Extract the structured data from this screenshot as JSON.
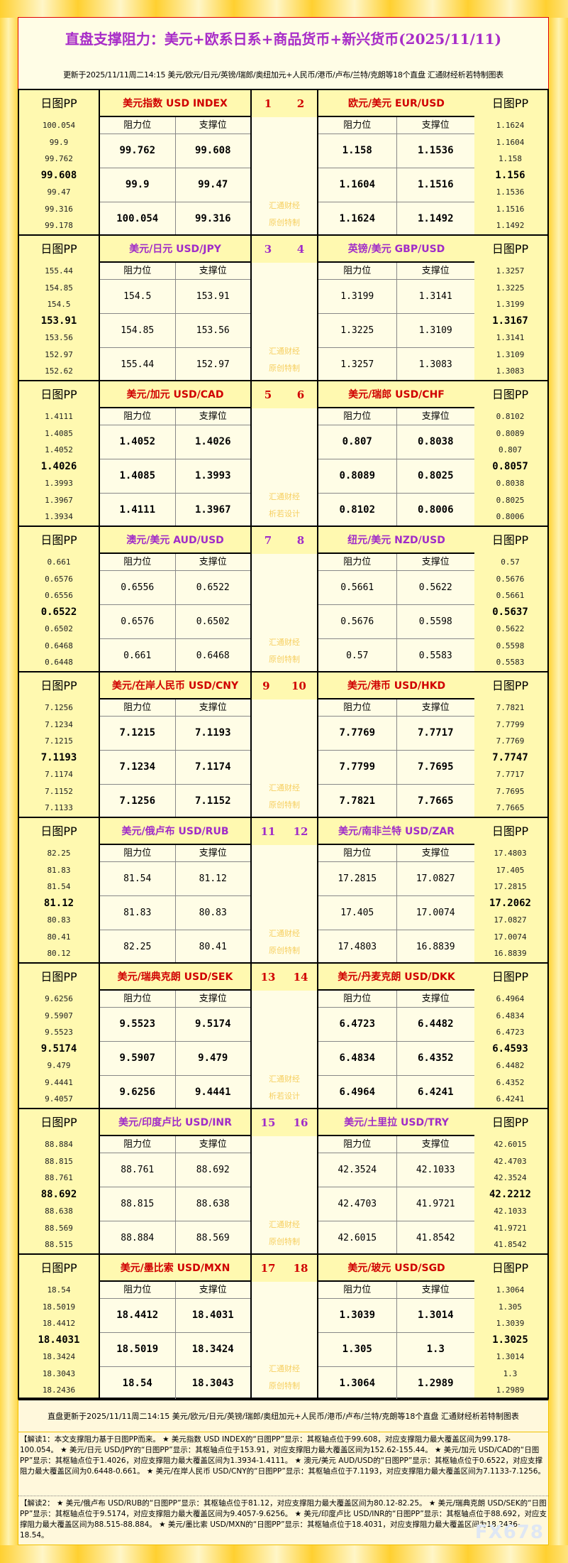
{
  "title": "直盘支撑阻力：美元+欧系日系+商品货币+新兴货币(2025/11/11)",
  "subtitle": "更新于2025/11/11周二14:15 美元/欧元/日元/英镑/瑞郎/奥纽加元+人民币/港币/卢布/兰特/克朗等18个直盘 汇通财经析若特制图表",
  "labels": {
    "pp": "日图PP",
    "resistance": "阻力位",
    "support": "支撑位"
  },
  "colors": {
    "odd_header": "#d00000",
    "even_header": "#a02cc8"
  },
  "blocks": [
    {
      "left": {
        "name": "美元指数 USD INDEX",
        "pp": [
          "100.054",
          "99.9",
          "99.762",
          "99.608",
          "99.47",
          "99.316",
          "99.178"
        ],
        "rows": [
          [
            "99.762",
            "99.608"
          ],
          [
            "99.9",
            "99.47"
          ],
          [
            "100.054",
            "99.316"
          ]
        ]
      },
      "nums": [
        "1",
        "2"
      ],
      "watermark": [
        "汇通财经",
        "原创特制"
      ],
      "right": {
        "name": "欧元/美元 EUR/USD",
        "pp": [
          "1.1624",
          "1.1604",
          "1.158",
          "1.156",
          "1.1536",
          "1.1516",
          "1.1492"
        ],
        "rows": [
          [
            "1.158",
            "1.1536"
          ],
          [
            "1.1604",
            "1.1516"
          ],
          [
            "1.1624",
            "1.1492"
          ]
        ]
      }
    },
    {
      "left": {
        "name": "美元/日元 USD/JPY",
        "pp": [
          "155.44",
          "154.85",
          "154.5",
          "153.91",
          "153.56",
          "152.97",
          "152.62"
        ],
        "rows": [
          [
            "154.5",
            "153.91"
          ],
          [
            "154.85",
            "153.56"
          ],
          [
            "155.44",
            "152.97"
          ]
        ]
      },
      "nums": [
        "3",
        "4"
      ],
      "watermark": [
        "汇通财经",
        "原创特制"
      ],
      "right": {
        "name": "英镑/美元 GBP/USD",
        "pp": [
          "1.3257",
          "1.3225",
          "1.3199",
          "1.3167",
          "1.3141",
          "1.3109",
          "1.3083"
        ],
        "rows": [
          [
            "1.3199",
            "1.3141"
          ],
          [
            "1.3225",
            "1.3109"
          ],
          [
            "1.3257",
            "1.3083"
          ]
        ]
      }
    },
    {
      "left": {
        "name": "美元/加元 USD/CAD",
        "pp": [
          "1.4111",
          "1.4085",
          "1.4052",
          "1.4026",
          "1.3993",
          "1.3967",
          "1.3934"
        ],
        "rows": [
          [
            "1.4052",
            "1.4026"
          ],
          [
            "1.4085",
            "1.3993"
          ],
          [
            "1.4111",
            "1.3967"
          ]
        ]
      },
      "nums": [
        "5",
        "6"
      ],
      "watermark": [
        "汇通财经",
        "析若设计"
      ],
      "right": {
        "name": "美元/瑞郎 USD/CHF",
        "pp": [
          "0.8102",
          "0.8089",
          "0.807",
          "0.8057",
          "0.8038",
          "0.8025",
          "0.8006"
        ],
        "rows": [
          [
            "0.807",
            "0.8038"
          ],
          [
            "0.8089",
            "0.8025"
          ],
          [
            "0.8102",
            "0.8006"
          ]
        ]
      }
    },
    {
      "left": {
        "name": "澳元/美元 AUD/USD",
        "pp": [
          "0.661",
          "0.6576",
          "0.6556",
          "0.6522",
          "0.6502",
          "0.6468",
          "0.6448"
        ],
        "rows": [
          [
            "0.6556",
            "0.6522"
          ],
          [
            "0.6576",
            "0.6502"
          ],
          [
            "0.661",
            "0.6468"
          ]
        ]
      },
      "nums": [
        "7",
        "8"
      ],
      "watermark": [
        "汇通财经",
        "原创特制"
      ],
      "right": {
        "name": "纽元/美元 NZD/USD",
        "pp": [
          "0.57",
          "0.5676",
          "0.5661",
          "0.5637",
          "0.5622",
          "0.5598",
          "0.5583"
        ],
        "rows": [
          [
            "0.5661",
            "0.5622"
          ],
          [
            "0.5676",
            "0.5598"
          ],
          [
            "0.57",
            "0.5583"
          ]
        ]
      }
    },
    {
      "left": {
        "name": "美元/在岸人民币 USD/CNY",
        "pp": [
          "7.1256",
          "7.1234",
          "7.1215",
          "7.1193",
          "7.1174",
          "7.1152",
          "7.1133"
        ],
        "rows": [
          [
            "7.1215",
            "7.1193"
          ],
          [
            "7.1234",
            "7.1174"
          ],
          [
            "7.1256",
            "7.1152"
          ]
        ]
      },
      "nums": [
        "9",
        "10"
      ],
      "watermark": [
        "汇通财经",
        "原创特制"
      ],
      "right": {
        "name": "美元/港币 USD/HKD",
        "pp": [
          "7.7821",
          "7.7799",
          "7.7769",
          "7.7747",
          "7.7717",
          "7.7695",
          "7.7665"
        ],
        "rows": [
          [
            "7.7769",
            "7.7717"
          ],
          [
            "7.7799",
            "7.7695"
          ],
          [
            "7.7821",
            "7.7665"
          ]
        ]
      }
    },
    {
      "left": {
        "name": "美元/俄卢布 USD/RUB",
        "pp": [
          "82.25",
          "81.83",
          "81.54",
          "81.12",
          "80.83",
          "80.41",
          "80.12"
        ],
        "rows": [
          [
            "81.54",
            "81.12"
          ],
          [
            "81.83",
            "80.83"
          ],
          [
            "82.25",
            "80.41"
          ]
        ]
      },
      "nums": [
        "11",
        "12"
      ],
      "watermark": [
        "汇通财经",
        "原创特制"
      ],
      "right": {
        "name": "美元/南非兰特 USD/ZAR",
        "pp": [
          "17.4803",
          "17.405",
          "17.2815",
          "17.2062",
          "17.0827",
          "17.0074",
          "16.8839"
        ],
        "rows": [
          [
            "17.2815",
            "17.0827"
          ],
          [
            "17.405",
            "17.0074"
          ],
          [
            "17.4803",
            "16.8839"
          ]
        ]
      }
    },
    {
      "left": {
        "name": "美元/瑞典克朗 USD/SEK",
        "pp": [
          "9.6256",
          "9.5907",
          "9.5523",
          "9.5174",
          "9.479",
          "9.4441",
          "9.4057"
        ],
        "rows": [
          [
            "9.5523",
            "9.5174"
          ],
          [
            "9.5907",
            "9.479"
          ],
          [
            "9.6256",
            "9.4441"
          ]
        ]
      },
      "nums": [
        "13",
        "14"
      ],
      "watermark": [
        "汇通财经",
        "析若设计"
      ],
      "right": {
        "name": "美元/丹麦克朗 USD/DKK",
        "pp": [
          "6.4964",
          "6.4834",
          "6.4723",
          "6.4593",
          "6.4482",
          "6.4352",
          "6.4241"
        ],
        "rows": [
          [
            "6.4723",
            "6.4482"
          ],
          [
            "6.4834",
            "6.4352"
          ],
          [
            "6.4964",
            "6.4241"
          ]
        ]
      }
    },
    {
      "left": {
        "name": "美元/印度卢比 USD/INR",
        "pp": [
          "88.884",
          "88.815",
          "88.761",
          "88.692",
          "88.638",
          "88.569",
          "88.515"
        ],
        "rows": [
          [
            "88.761",
            "88.692"
          ],
          [
            "88.815",
            "88.638"
          ],
          [
            "88.884",
            "88.569"
          ]
        ]
      },
      "nums": [
        "15",
        "16"
      ],
      "watermark": [
        "汇通财经",
        "原创特制"
      ],
      "right": {
        "name": "美元/土里拉 USD/TRY",
        "pp": [
          "42.6015",
          "42.4703",
          "42.3524",
          "42.2212",
          "42.1033",
          "41.9721",
          "41.8542"
        ],
        "rows": [
          [
            "42.3524",
            "42.1033"
          ],
          [
            "42.4703",
            "41.9721"
          ],
          [
            "42.6015",
            "41.8542"
          ]
        ]
      }
    },
    {
      "left": {
        "name": "美元/墨比索 USD/MXN",
        "pp": [
          "18.54",
          "18.5019",
          "18.4412",
          "18.4031",
          "18.3424",
          "18.3043",
          "18.2436"
        ],
        "rows": [
          [
            "18.4412",
            "18.4031"
          ],
          [
            "18.5019",
            "18.3424"
          ],
          [
            "18.54",
            "18.3043"
          ]
        ]
      },
      "nums": [
        "17",
        "18"
      ],
      "watermark": [
        "汇通财经",
        "原创特制"
      ],
      "right": {
        "name": "美元/玻元 USD/SGD",
        "pp": [
          "1.3064",
          "1.305",
          "1.3039",
          "1.3025",
          "1.3014",
          "1.3",
          "1.2989"
        ],
        "rows": [
          [
            "1.3039",
            "1.3014"
          ],
          [
            "1.305",
            "1.3"
          ],
          [
            "1.3064",
            "1.2989"
          ]
        ]
      }
    }
  ],
  "footer": {
    "update": "直盘更新于2025/11/11周二14:15 美元/欧元/日元/英镑/瑞郎/奥纽加元+人民币/港币/卢布/兰特/克朗等18个直盘 汇通财经析若特制图表",
    "note1": "【解读1：本文支撑阻力基于日图PP而来。 ★ 美元指数 USD INDEX的“日图PP”显示：其枢轴点位于99.608，对应支撑阻力最大覆盖区间为99.178-100.054。 ★ 美元/日元 USD/JPY的“日图PP”显示：其枢轴点位于153.91，对应支撑阻力最大覆盖区间为152.62-155.44。 ★ 美元/加元 USD/CAD的“日图PP”显示：其枢轴点位于1.4026，对应支撑阻力最大覆盖区间为1.3934-1.4111。 ★ 澳元/美元 AUD/USD的“日图PP”显示：其枢轴点位于0.6522，对应支撑阻力最大覆盖区间为0.6448-0.661。 ★ 美元/在岸人民币 USD/CNY的“日图PP”显示：其枢轴点位于7.1193，对应支撑阻力最大覆盖区间为7.1133-7.1256。",
    "note2": "【解读2： ★ 美元/俄卢布 USD/RUB的“日图PP”显示：其枢轴点位于81.12，对应支撑阻力最大覆盖区间为80.12-82.25。 ★ 美元/瑞典克朗 USD/SEK的“日图PP”显示：其枢轴点位于9.5174，对应支撑阻力最大覆盖区间为9.4057-9.6256。 ★ 美元/印度卢比 USD/INR的“日图PP”显示：其枢轴点位于88.692，对应支撑阻力最大覆盖区间为88.515-88.884。 ★ 美元/墨比索 USD/MXN的“日图PP”显示：其枢轴点位于18.4031，对应支撑阻力最大覆盖区间为18.2436-18.54。",
    "logo": "FX678"
  }
}
